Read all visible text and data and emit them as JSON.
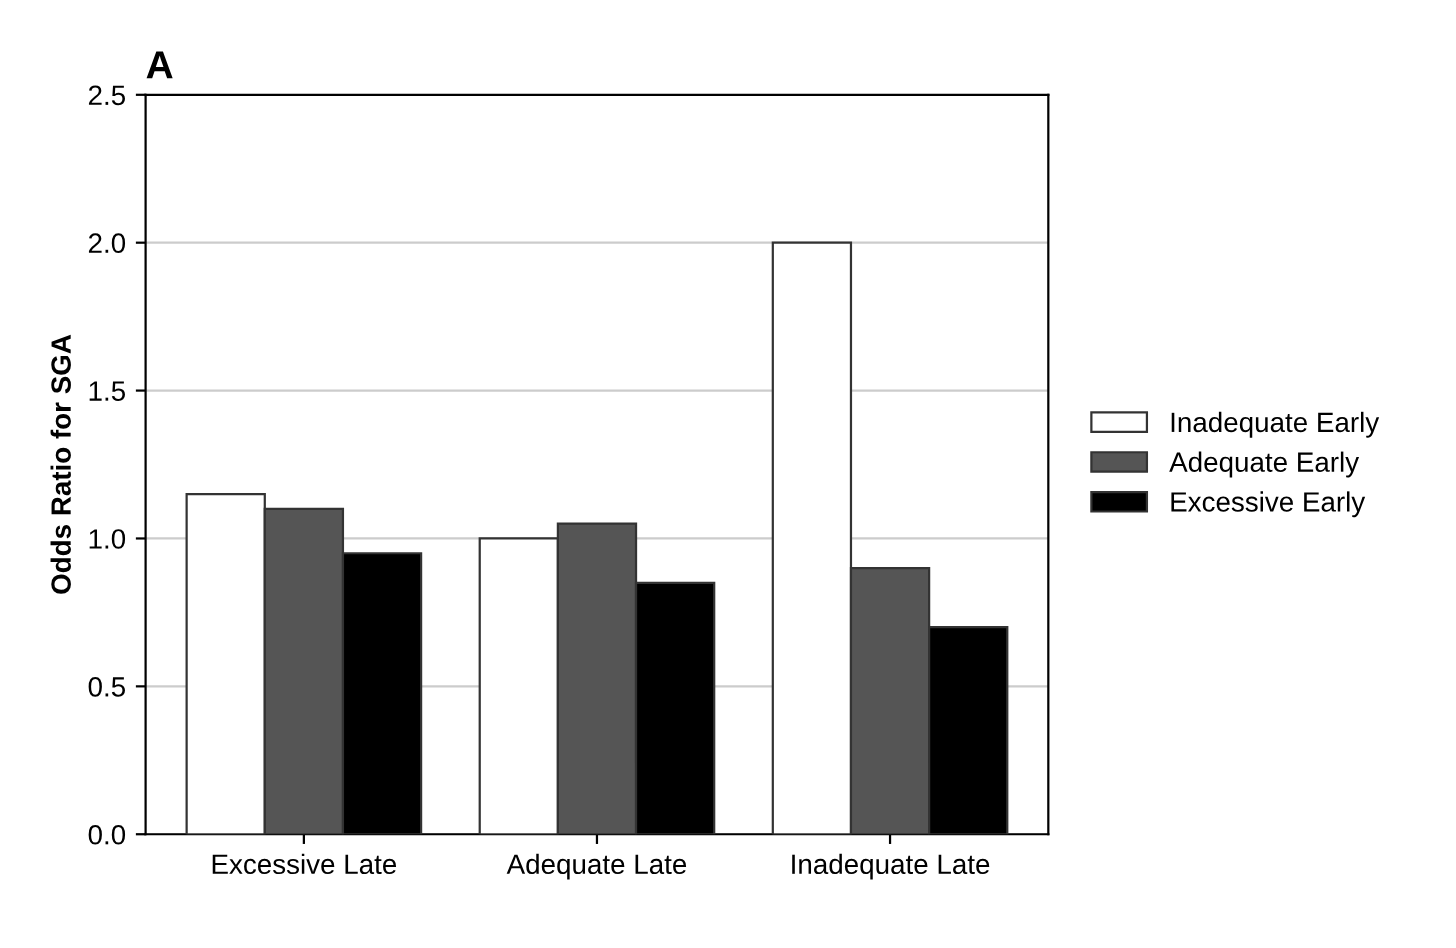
{
  "chart_data": {
    "type": "bar",
    "title": "A",
    "ylabel": "Odds Ratio for SGA",
    "categories": [
      "Excessive Late",
      "Adequate Late",
      "Inadequate Late"
    ],
    "series": [
      {
        "name": "Inadequate Early",
        "color": "#ffffff",
        "values": [
          1.15,
          1.0,
          2.0
        ]
      },
      {
        "name": "Adequate Early",
        "color": "#555555",
        "values": [
          1.1,
          1.05,
          0.9
        ]
      },
      {
        "name": "Excessive Early",
        "color": "#000000",
        "values": [
          0.95,
          0.85,
          0.7
        ]
      }
    ],
    "ylim": [
      0,
      2.5
    ],
    "yticks": [
      {
        "value": 0,
        "label": "0.0"
      },
      {
        "value": 0.5,
        "label": "0.5"
      },
      {
        "value": 1,
        "label": "1.0"
      },
      {
        "value": 1.5,
        "label": "1.5"
      },
      {
        "value": 2,
        "label": "2.0"
      },
      {
        "value": 2.5,
        "label": "2.5"
      }
    ],
    "grid": "y",
    "legend": "right"
  }
}
